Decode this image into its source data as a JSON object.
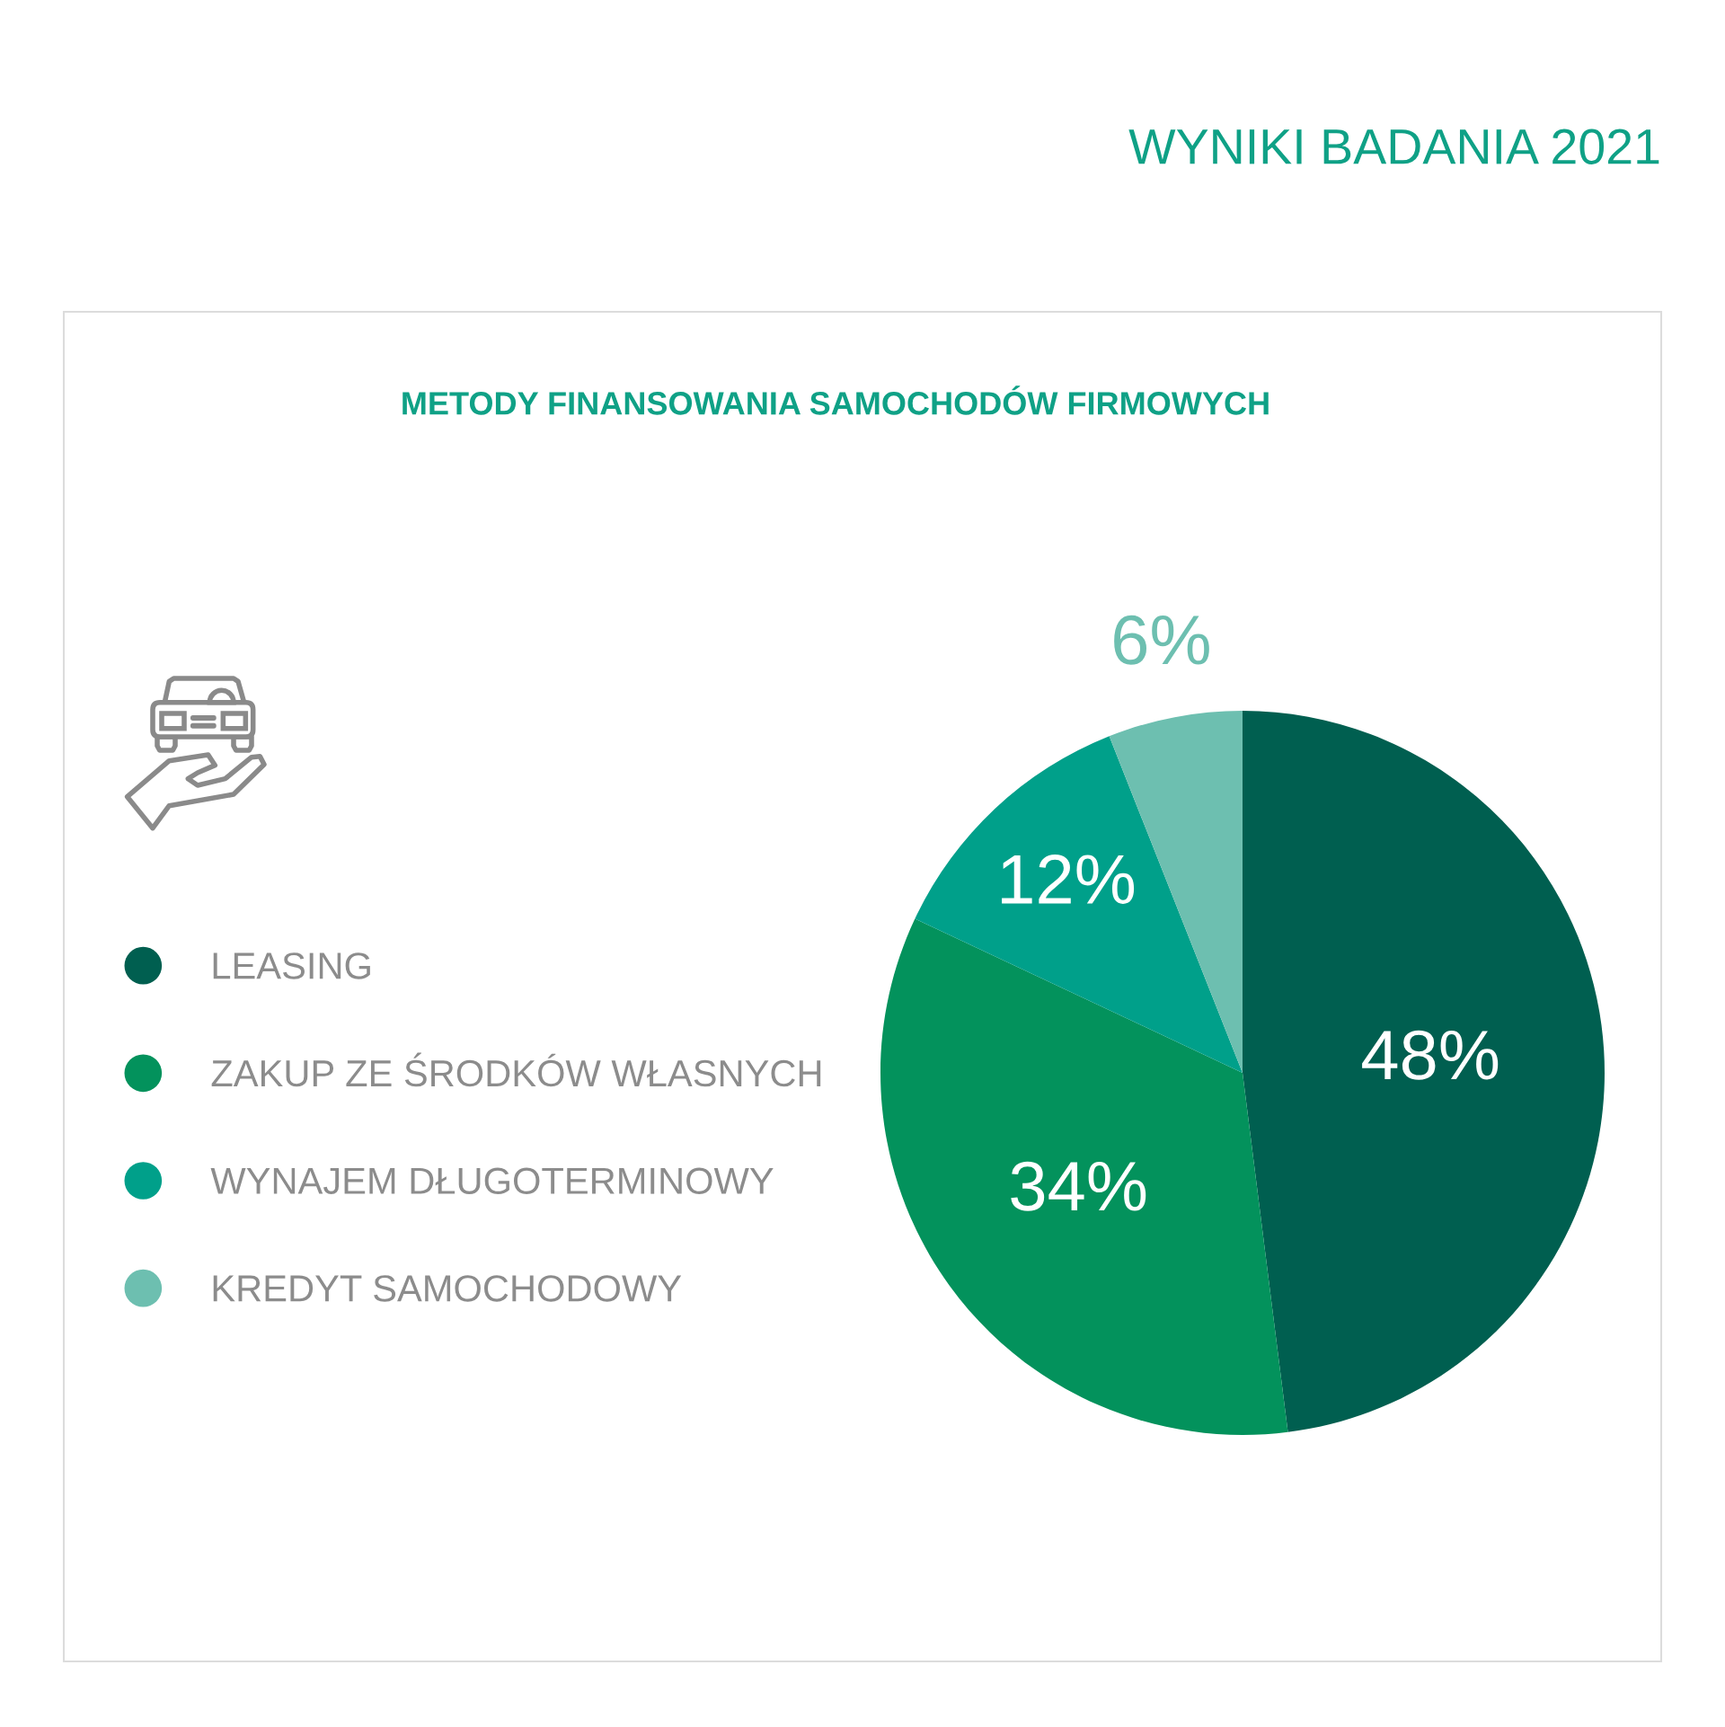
{
  "chart_data": {
    "type": "pie",
    "title": "METODY FINANSOWANIA SAMOCHODÓW FIRMOWYCH",
    "subtitle": "WYNIKI BADANIA 2021",
    "categories": [
      "LEASING",
      "ZAKUP ZE ŚRODKÓW WŁASNYCH",
      "WYNAJEM DŁUGOTERMINOWY",
      "KREDYT SAMOCHODOWY"
    ],
    "values": [
      48,
      34,
      12,
      6
    ],
    "colors": [
      "#005f50",
      "#03925c",
      "#00a08a",
      "#6dbfb0"
    ],
    "value_labels": [
      "48%",
      "34%",
      "12%",
      "6%"
    ],
    "legend": "left"
  }
}
